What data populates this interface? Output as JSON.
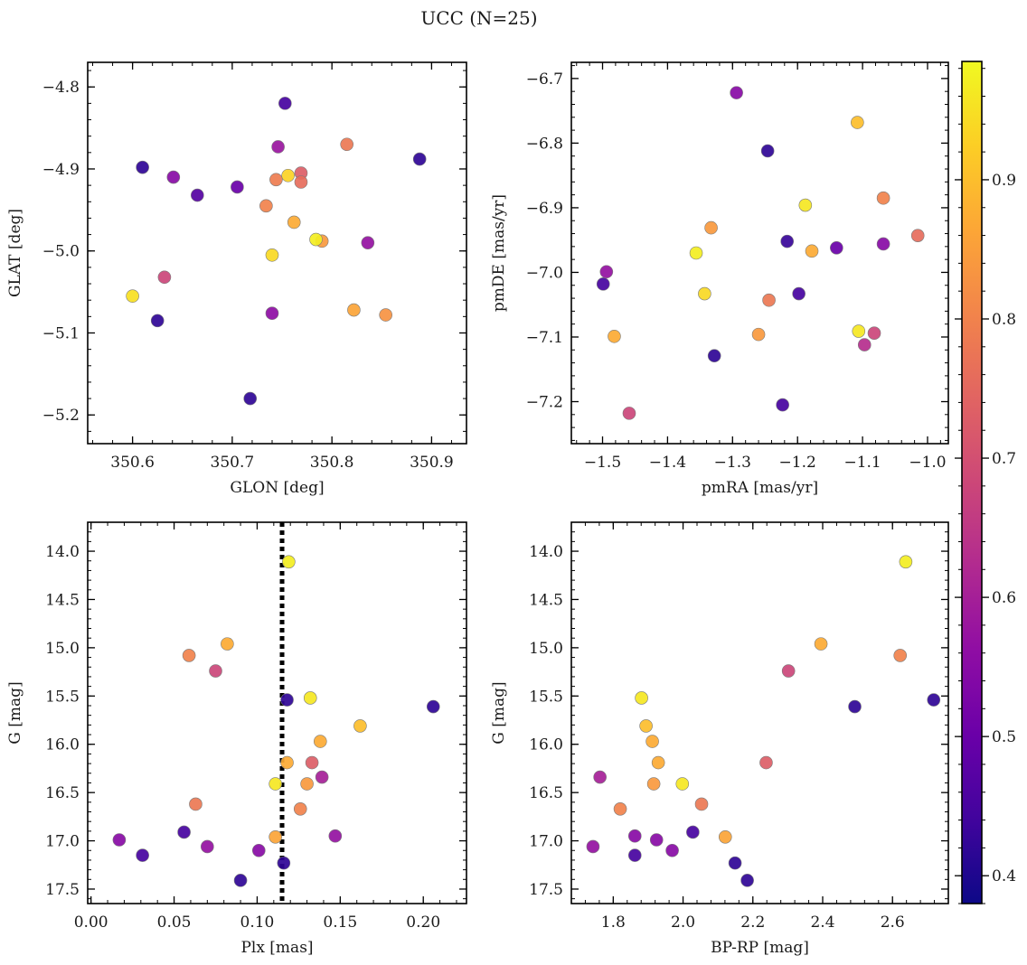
{
  "figure": {
    "title": "UCC (N=25)"
  },
  "colorbar": {
    "min": 0.38,
    "max": 0.985,
    "ticks": [
      0.4,
      0.5,
      0.6,
      0.7,
      0.8,
      0.9
    ],
    "tick_labels": [
      "0.4",
      "0.5",
      "0.6",
      "0.7",
      "0.8",
      "0.9"
    ],
    "colormap": "plasma"
  },
  "chart_data": [
    {
      "type": "scatter",
      "name_id": "glon-glat",
      "xlabel": "GLON [deg]",
      "ylabel": "GLAT [deg]",
      "xlim": [
        350.555,
        350.935
      ],
      "ylim": [
        -5.235,
        -4.77
      ],
      "xticks": [
        350.6,
        350.7,
        350.8,
        350.9
      ],
      "xtick_labels": [
        "350.6",
        "350.7",
        "350.8",
        "350.9"
      ],
      "yticks": [
        -5.2,
        -5.1,
        -5.0,
        -4.9,
        -4.8
      ],
      "ytick_labels": [
        "−5.2",
        "−5.1",
        "−5.0",
        "−4.9",
        "−4.8"
      ],
      "y_inverted": false,
      "x": [
        350.61,
        350.641,
        350.665,
        350.705,
        350.746,
        350.753,
        350.815,
        350.888,
        350.744,
        350.756,
        350.769,
        350.769,
        350.734,
        350.762,
        350.79,
        350.784,
        350.836,
        350.74,
        350.632,
        350.6,
        350.625,
        350.74,
        350.822,
        350.854,
        350.718
      ],
      "y": [
        -4.898,
        -4.91,
        -4.932,
        -4.922,
        -4.873,
        -4.82,
        -4.87,
        -4.888,
        -4.913,
        -4.908,
        -4.905,
        -4.916,
        -4.945,
        -4.965,
        -4.988,
        -4.986,
        -4.99,
        -5.005,
        -5.032,
        -5.055,
        -5.085,
        -5.076,
        -5.072,
        -5.078,
        -5.18
      ],
      "c": [
        0.42,
        0.55,
        0.47,
        0.5,
        0.58,
        0.45,
        0.78,
        0.42,
        0.79,
        0.93,
        0.73,
        0.76,
        0.8,
        0.87,
        0.84,
        0.97,
        0.57,
        0.94,
        0.68,
        0.95,
        0.42,
        0.56,
        0.86,
        0.83,
        0.42
      ]
    },
    {
      "type": "scatter",
      "name_id": "pmra-pmde",
      "xlabel": "pmRA [mas/yr]",
      "ylabel": "pmDE [mas/yr]",
      "xlim": [
        -1.548,
        -0.968
      ],
      "ylim": [
        -7.265,
        -6.675
      ],
      "xticks": [
        -1.5,
        -1.4,
        -1.3,
        -1.2,
        -1.1,
        -1.0
      ],
      "xtick_labels": [
        "−1.5",
        "−1.4",
        "−1.3",
        "−1.2",
        "−1.1",
        "−1.0"
      ],
      "yticks": [
        -7.2,
        -7.1,
        -7.0,
        -6.9,
        -6.8,
        -6.7
      ],
      "ytick_labels": [
        "−7.2",
        "−7.1",
        "−7.0",
        "−6.9",
        "−6.8",
        "−6.7"
      ],
      "y_inverted": false,
      "x": [
        -1.294,
        -1.108,
        -1.246,
        -1.068,
        -1.188,
        -1.333,
        -1.015,
        -1.216,
        -1.178,
        -1.14,
        -1.068,
        -1.356,
        -1.494,
        -1.499,
        -1.343,
        -1.244,
        -1.198,
        -1.482,
        -1.26,
        -1.106,
        -1.082,
        -1.097,
        -1.328,
        -1.223,
        -1.459
      ],
      "y": [
        -6.722,
        -6.768,
        -6.812,
        -6.885,
        -6.896,
        -6.931,
        -6.943,
        -6.952,
        -6.967,
        -6.962,
        -6.956,
        -6.97,
        -6.999,
        -7.018,
        -7.033,
        -7.043,
        -7.033,
        -7.099,
        -7.096,
        -7.091,
        -7.094,
        -7.112,
        -7.129,
        -7.205,
        -7.218
      ],
      "c": [
        0.55,
        0.9,
        0.42,
        0.8,
        0.96,
        0.84,
        0.76,
        0.43,
        0.87,
        0.5,
        0.55,
        0.97,
        0.57,
        0.45,
        0.94,
        0.78,
        0.45,
        0.87,
        0.84,
        0.96,
        0.68,
        0.63,
        0.42,
        0.45,
        0.68
      ]
    },
    {
      "type": "scatter",
      "name_id": "plx-g",
      "xlabel": "Plx [mas]",
      "ylabel": "G [mag]",
      "xlim": [
        -0.002,
        0.226
      ],
      "ylim": [
        17.65,
        13.7
      ],
      "xticks": [
        0.0,
        0.05,
        0.1,
        0.15,
        0.2
      ],
      "xtick_labels": [
        "0.00",
        "0.05",
        "0.10",
        "0.15",
        "0.20"
      ],
      "yticks": [
        14.0,
        14.5,
        15.0,
        15.5,
        16.0,
        16.5,
        17.0,
        17.5
      ],
      "ytick_labels": [
        "14.0",
        "14.5",
        "15.0",
        "15.5",
        "16.0",
        "16.5",
        "17.0",
        "17.5"
      ],
      "y_inverted": true,
      "vline": {
        "x": 0.115,
        "style": "dotted"
      },
      "x": [
        0.119,
        0.082,
        0.059,
        0.075,
        0.118,
        0.132,
        0.206,
        0.162,
        0.138,
        0.118,
        0.133,
        0.139,
        0.111,
        0.13,
        0.063,
        0.126,
        0.017,
        0.056,
        0.07,
        0.031,
        0.101,
        0.111,
        0.147,
        0.116,
        0.09
      ],
      "y": [
        14.11,
        14.96,
        15.08,
        15.24,
        15.54,
        15.52,
        15.61,
        15.81,
        15.97,
        16.19,
        16.19,
        16.34,
        16.41,
        16.41,
        16.62,
        16.67,
        16.99,
        16.91,
        17.06,
        17.15,
        17.1,
        16.96,
        16.95,
        17.23,
        17.41
      ],
      "c": [
        0.97,
        0.87,
        0.8,
        0.68,
        0.42,
        0.96,
        0.42,
        0.9,
        0.87,
        0.87,
        0.73,
        0.6,
        0.96,
        0.84,
        0.78,
        0.8,
        0.55,
        0.45,
        0.57,
        0.45,
        0.55,
        0.86,
        0.57,
        0.42,
        0.42
      ]
    },
    {
      "type": "scatter",
      "name_id": "bprp-g",
      "xlabel": "BP-RP [mag]",
      "ylabel": "G [mag]",
      "xlim": [
        1.68,
        2.76
      ],
      "ylim": [
        17.65,
        13.7
      ],
      "xticks": [
        1.8,
        2.0,
        2.2,
        2.4,
        2.6
      ],
      "xtick_labels": [
        "1.8",
        "2.0",
        "2.2",
        "2.4",
        "2.6"
      ],
      "yticks": [
        14.0,
        14.5,
        15.0,
        15.5,
        16.0,
        16.5,
        17.0,
        17.5
      ],
      "ytick_labels": [
        "14.0",
        "14.5",
        "15.0",
        "15.5",
        "16.0",
        "16.5",
        "17.0",
        "17.5"
      ],
      "y_inverted": true,
      "x": [
        2.638,
        2.395,
        2.622,
        2.302,
        1.881,
        2.492,
        2.718,
        1.894,
        1.912,
        1.929,
        2.238,
        1.762,
        1.998,
        1.916,
        2.053,
        1.82,
        1.742,
        1.862,
        2.028,
        1.924,
        1.969,
        2.121,
        1.862,
        2.149,
        2.184
      ],
      "y": [
        14.11,
        14.96,
        15.08,
        15.24,
        15.52,
        15.61,
        15.54,
        15.81,
        15.97,
        16.19,
        16.19,
        16.34,
        16.41,
        16.41,
        16.62,
        16.67,
        17.06,
        16.95,
        16.91,
        16.99,
        17.1,
        16.96,
        17.15,
        17.23,
        17.41
      ],
      "c": [
        0.97,
        0.87,
        0.8,
        0.68,
        0.96,
        0.42,
        0.42,
        0.9,
        0.87,
        0.87,
        0.73,
        0.6,
        0.96,
        0.84,
        0.78,
        0.8,
        0.57,
        0.55,
        0.45,
        0.55,
        0.55,
        0.86,
        0.45,
        0.42,
        0.42
      ]
    }
  ]
}
